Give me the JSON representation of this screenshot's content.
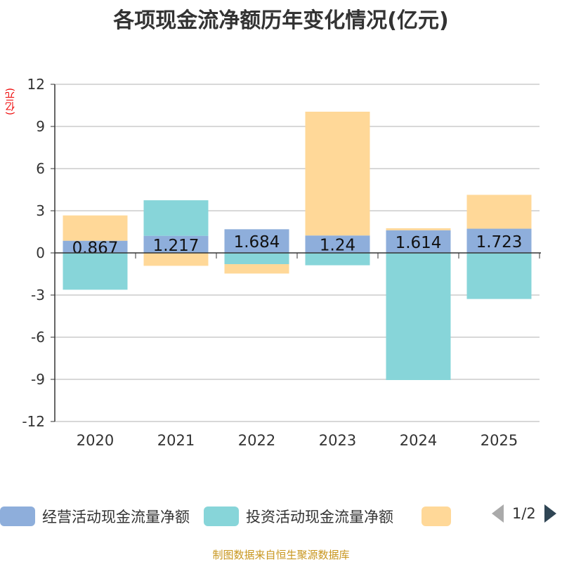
{
  "title": "各项现金流净额历年变化情况(亿元)",
  "unit": "(亿元)",
  "footer": "制图数据来自恒生聚源数据库",
  "legend": {
    "pager": "1/2"
  },
  "colors": {
    "operating": "#8eaedb",
    "investing": "#87d5d9",
    "financing": "#ffd898"
  },
  "chart_data": {
    "type": "bar",
    "stacked": true,
    "categories": [
      "2020",
      "2021",
      "2022",
      "2023",
      "2024",
      "2025"
    ],
    "ylim": [
      -12,
      12
    ],
    "yticks": [
      "12",
      "9",
      "6",
      "3",
      "0",
      "-3",
      "-6",
      "-9",
      "-12"
    ],
    "grid": true,
    "legend_position": "bottom",
    "series": [
      {
        "name": "经营活动现金流量净额",
        "values": [
          0.867,
          1.217,
          1.684,
          1.24,
          1.614,
          1.723
        ],
        "labels": [
          "0.867",
          "1.217",
          "1.684",
          "1.24",
          "1.614",
          "1.723"
        ]
      },
      {
        "name": "投资活动现金流量净额",
        "values": [
          -2.62,
          2.53,
          -0.8,
          -0.88,
          -9.05,
          -3.28
        ]
      },
      {
        "name": "",
        "values": [
          1.8,
          -0.92,
          -0.67,
          8.81,
          0.14,
          2.41
        ]
      }
    ]
  }
}
